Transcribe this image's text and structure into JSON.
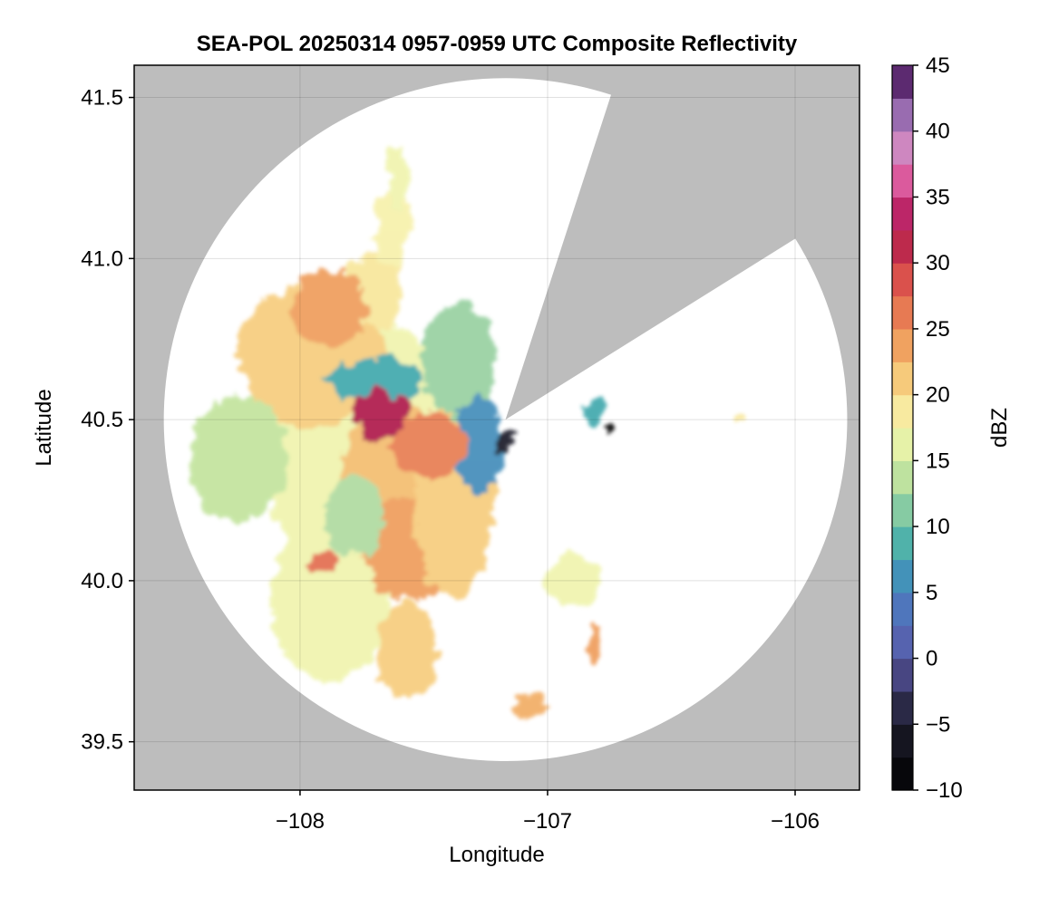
{
  "chart_data": {
    "type": "heatmap",
    "title": "SEA-POL 20250314 0957-0959 UTC Composite Reflectivity",
    "xlabel": "Longitude",
    "ylabel": "Latitude",
    "xlim": [
      -108.67,
      -105.74
    ],
    "ylim": [
      39.35,
      41.6
    ],
    "x_ticks": [
      -108,
      -107,
      -106
    ],
    "x_tick_labels": [
      "−108",
      "−107",
      "−106"
    ],
    "y_ticks": [
      39.5,
      40.0,
      40.5,
      41.0,
      41.5
    ],
    "y_tick_labels": [
      "39.5",
      "40.0",
      "40.5",
      "41.0",
      "41.5"
    ],
    "grid": true,
    "background_color": "#bdbdbd",
    "coverage_color": "#ffffff",
    "radar_center": {
      "lon": -107.17,
      "lat": 40.5
    },
    "coverage_radius_lat_deg": 1.06,
    "blocked_sector_bearing_deg": [
      18,
      58
    ],
    "colorbar": {
      "label": "dBZ",
      "min": -10,
      "max": 45,
      "step": 2.5,
      "ticks": [
        -10,
        -5,
        0,
        5,
        10,
        15,
        20,
        25,
        30,
        35,
        40,
        45
      ],
      "tick_labels": [
        "−10",
        "−5",
        "0",
        "5",
        "10",
        "15",
        "20",
        "25",
        "30",
        "35",
        "40",
        "45"
      ],
      "colormap": "spectral-extended",
      "stops": [
        [
          -10,
          "#000000"
        ],
        [
          -5,
          "#1c1c2b"
        ],
        [
          -2,
          "#3d3a6b"
        ],
        [
          0,
          "#5a5aa8"
        ],
        [
          5,
          "#4b7fc2"
        ],
        [
          7.5,
          "#3aa4b0"
        ],
        [
          10,
          "#66bfa4"
        ],
        [
          12.5,
          "#a6d6a2"
        ],
        [
          15,
          "#d6ee9b"
        ],
        [
          17.5,
          "#f6f6b4"
        ],
        [
          20,
          "#f9dd8c"
        ],
        [
          22.5,
          "#f3b66a"
        ],
        [
          25,
          "#ec8e55"
        ],
        [
          27.5,
          "#e26650"
        ],
        [
          30,
          "#d23c48"
        ],
        [
          32.5,
          "#a81850"
        ],
        [
          35,
          "#d0337f"
        ],
        [
          37.5,
          "#e580ba"
        ],
        [
          40,
          "#b68ec6"
        ],
        [
          42.5,
          "#7b4a99"
        ],
        [
          45,
          "#3d0a47"
        ]
      ]
    },
    "echo_regions": [
      {
        "lon": -107.72,
        "lat": 40.38,
        "rx": 0.42,
        "ry": 0.42,
        "dbz": 17
      },
      {
        "lon": -107.6,
        "lat": 40.25,
        "rx": 0.25,
        "ry": 0.3,
        "dbz": 22
      },
      {
        "lon": -107.95,
        "lat": 40.7,
        "rx": 0.3,
        "ry": 0.22,
        "dbz": 21
      },
      {
        "lon": -107.88,
        "lat": 39.95,
        "rx": 0.24,
        "ry": 0.26,
        "dbz": 17
      },
      {
        "lon": -107.57,
        "lat": 39.78,
        "rx": 0.12,
        "ry": 0.15,
        "dbz": 21
      },
      {
        "lon": -107.55,
        "lat": 40.1,
        "rx": 0.2,
        "ry": 0.16,
        "dbz": 24
      },
      {
        "lon": -107.38,
        "lat": 40.25,
        "rx": 0.16,
        "ry": 0.3,
        "dbz": 21
      },
      {
        "lon": -108.25,
        "lat": 40.38,
        "rx": 0.2,
        "ry": 0.2,
        "dbz": 14
      },
      {
        "lon": -107.7,
        "lat": 40.9,
        "rx": 0.12,
        "ry": 0.12,
        "dbz": 19
      },
      {
        "lon": -107.88,
        "lat": 40.85,
        "rx": 0.15,
        "ry": 0.12,
        "dbz": 24
      },
      {
        "lon": -107.63,
        "lat": 41.1,
        "rx": 0.07,
        "ry": 0.14,
        "dbz": 18
      },
      {
        "lon": -107.6,
        "lat": 41.25,
        "rx": 0.05,
        "ry": 0.09,
        "dbz": 17
      },
      {
        "lon": -107.35,
        "lat": 40.68,
        "rx": 0.15,
        "ry": 0.18,
        "dbz": 12
      },
      {
        "lon": -107.28,
        "lat": 40.42,
        "rx": 0.1,
        "ry": 0.14,
        "dbz": 6
      },
      {
        "lon": -107.7,
        "lat": 40.62,
        "rx": 0.2,
        "ry": 0.07,
        "dbz": 8
      },
      {
        "lon": -107.78,
        "lat": 40.2,
        "rx": 0.12,
        "ry": 0.12,
        "dbz": 13
      },
      {
        "lon": -107.68,
        "lat": 40.52,
        "rx": 0.11,
        "ry": 0.08,
        "dbz": 32
      },
      {
        "lon": -107.48,
        "lat": 40.42,
        "rx": 0.15,
        "ry": 0.1,
        "dbz": 26
      },
      {
        "lon": -107.9,
        "lat": 40.06,
        "rx": 0.06,
        "ry": 0.05,
        "dbz": 27
      },
      {
        "lon": -106.9,
        "lat": 40.0,
        "rx": 0.12,
        "ry": 0.08,
        "dbz": 17
      },
      {
        "lon": -106.81,
        "lat": 39.8,
        "rx": 0.03,
        "ry": 0.06,
        "dbz": 24
      },
      {
        "lon": -107.07,
        "lat": 39.61,
        "rx": 0.06,
        "ry": 0.04,
        "dbz": 23
      },
      {
        "lon": -106.81,
        "lat": 40.53,
        "rx": 0.05,
        "ry": 0.04,
        "dbz": 8
      },
      {
        "lon": -106.22,
        "lat": 40.51,
        "rx": 0.03,
        "ry": 0.02,
        "dbz": 19
      },
      {
        "lon": -107.18,
        "lat": 40.43,
        "rx": 0.03,
        "ry": 0.04,
        "dbz": -5
      },
      {
        "lon": -106.74,
        "lat": 40.46,
        "rx": 0.01,
        "ry": 0.01,
        "dbz": -10
      }
    ]
  }
}
